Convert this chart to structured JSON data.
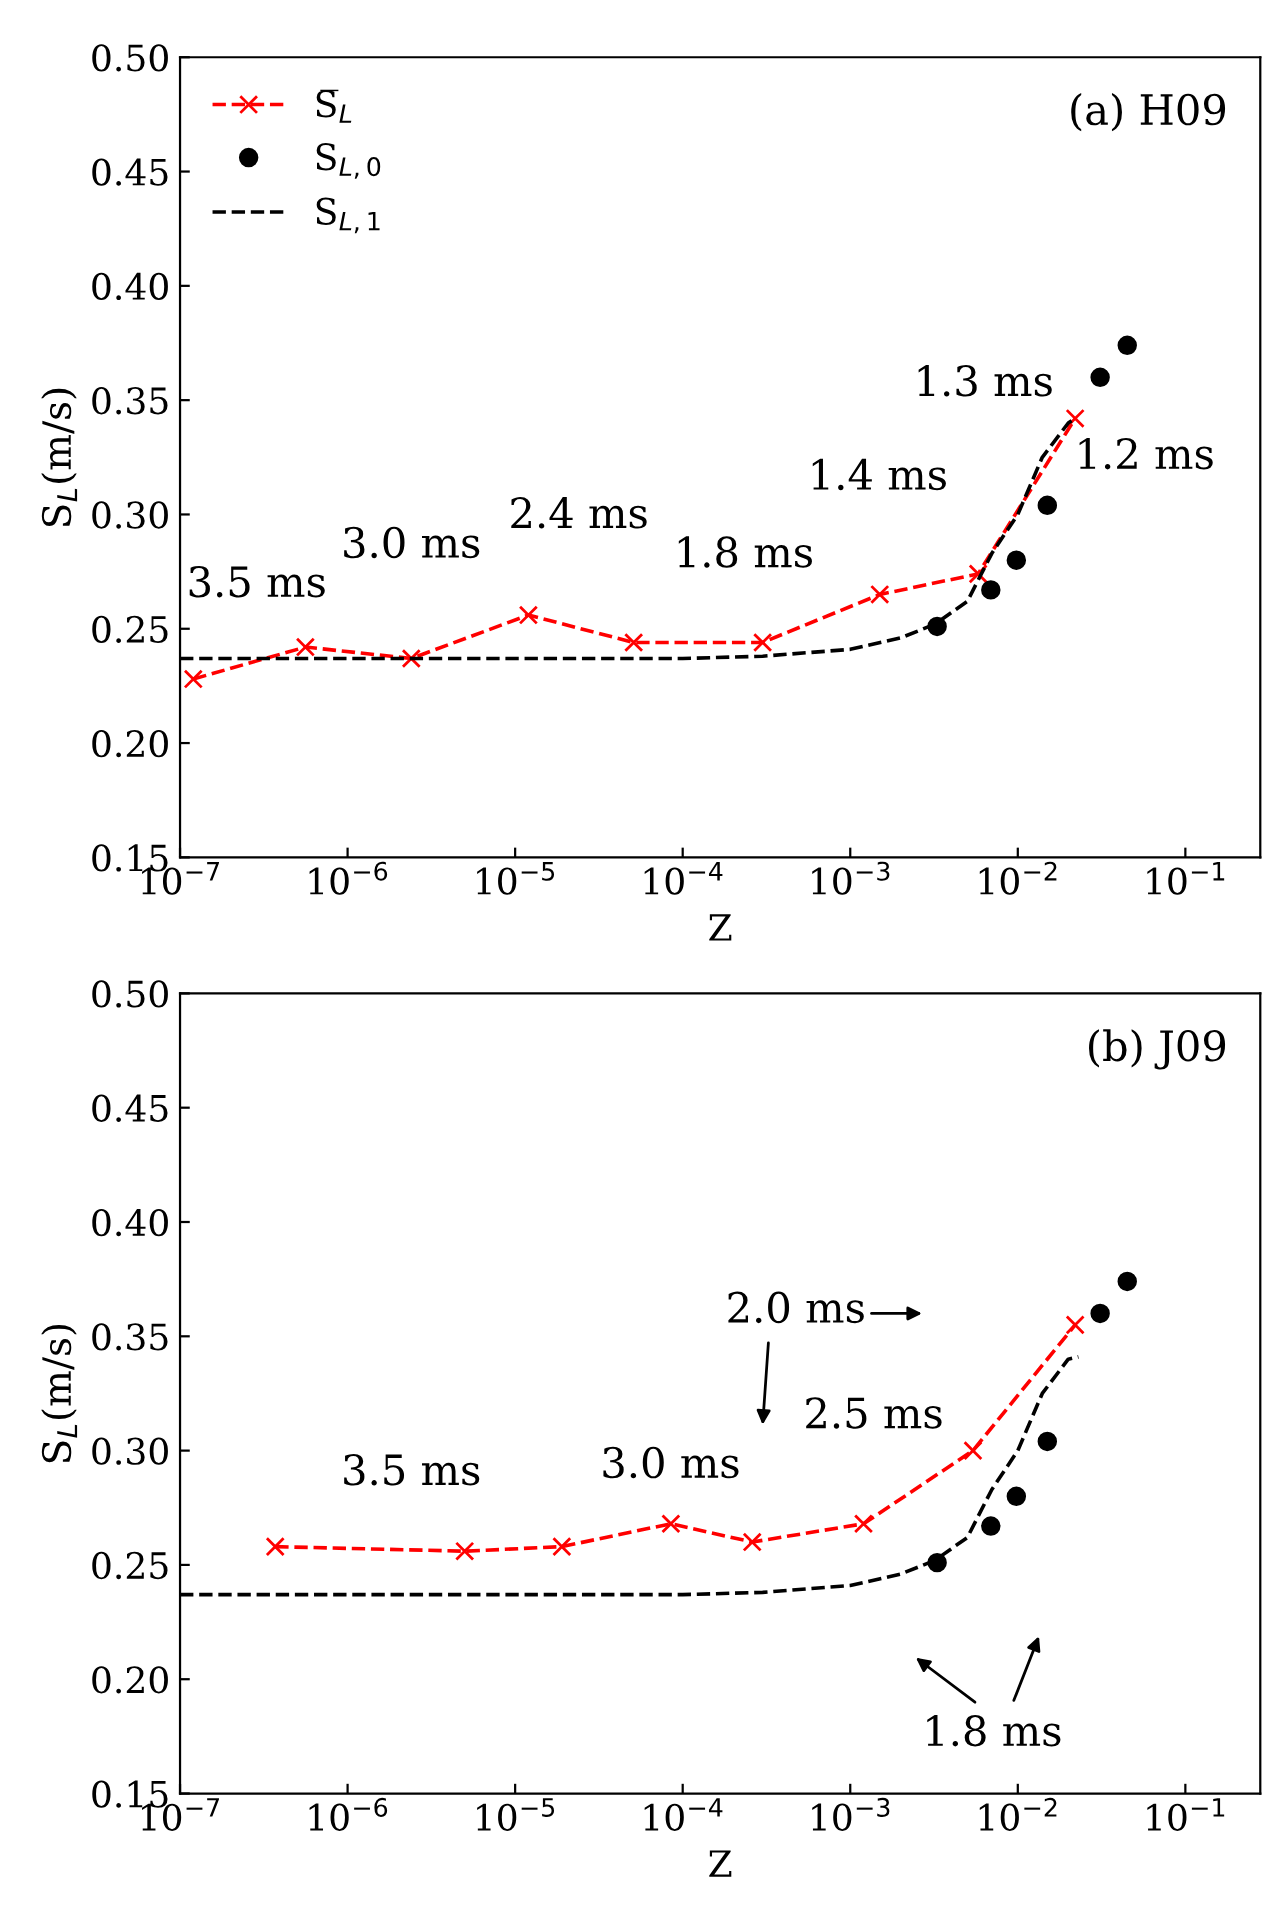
{
  "chart_data": [
    {
      "type": "line",
      "xlabel": "Z",
      "ylabel": "S$_{L}$(m/s)",
      "log": "x",
      "xlim": [
        1e-07,
        0.28
      ],
      "ylim": [
        0.15,
        0.5
      ],
      "xticks": [
        {
          "value": 1e-07,
          "label": "10$^{−7}$"
        },
        {
          "value": 1e-06,
          "label": "10$^{−6}$"
        },
        {
          "value": 1e-05,
          "label": "10$^{−5}$"
        },
        {
          "value": 0.0001,
          "label": "10$^{−4}$"
        },
        {
          "value": 0.001,
          "label": "10$^{−3}$"
        },
        {
          "value": 0.01,
          "label": "10$^{−2}$"
        },
        {
          "value": 0.1,
          "label": "10$^{−1}$"
        }
      ],
      "yticks": [
        {
          "value": 0.15,
          "label": "0.15"
        },
        {
          "value": 0.2,
          "label": "0.20"
        },
        {
          "value": 0.25,
          "label": "0.25"
        },
        {
          "value": 0.3,
          "label": "0.30"
        },
        {
          "value": 0.35,
          "label": "0.35"
        },
        {
          "value": 0.4,
          "label": "0.40"
        },
        {
          "value": 0.45,
          "label": "0.45"
        },
        {
          "value": 0.5,
          "label": "0.50"
        }
      ],
      "grid": false,
      "legend": "top left",
      "series": [
        {
          "name": "S̅$_{L}$",
          "color": "#ff0000",
          "marker": "cross",
          "line_style": "dashed",
          "x": [
            1.2e-07,
            5.6e-07,
            2.4e-06,
            1.2e-05,
            5.1e-05,
            0.0003,
            0.0015,
            0.0058,
            0.022
          ],
          "values": [
            0.228,
            0.242,
            0.237,
            0.256,
            0.244,
            0.244,
            0.265,
            0.274,
            0.342
          ]
        },
        {
          "name": "S$_{L,0}$",
          "type": "scatter",
          "color": "#000000",
          "marker": "circle",
          "x": [
            0.0033,
            0.0069,
            0.0098,
            0.015,
            0.031,
            0.045
          ],
          "values": [
            0.251,
            0.267,
            0.28,
            0.304,
            0.36,
            0.374
          ]
        },
        {
          "name": "S$_{L,1}$",
          "color": "#000000",
          "marker": "none",
          "line_style": "dashed",
          "x": [
            1e-07,
            0.0001,
            0.0003,
            0.001,
            0.002,
            0.0032,
            0.005,
            0.007,
            0.01,
            0.014,
            0.02,
            0.022
          ],
          "values": [
            0.237,
            0.237,
            0.238,
            0.241,
            0.246,
            0.252,
            0.262,
            0.283,
            0.3,
            0.325,
            0.34,
            0.342
          ]
        }
      ],
      "annotations": [
        "(a) H09",
        "3.5 ms",
        "3.0 ms",
        "2.4 ms",
        "1.8 ms",
        "1.4 ms",
        "1.3 ms",
        "1.2 ms"
      ]
    },
    {
      "type": "line",
      "xlabel": "Z",
      "ylabel": "S$_{L}$(m/s)",
      "log": "x",
      "xlim": [
        1e-07,
        0.28
      ],
      "ylim": [
        0.15,
        0.5
      ],
      "xticks": [
        {
          "value": 1e-07,
          "label": "10$^{−7}$"
        },
        {
          "value": 1e-06,
          "label": "10$^{−6}$"
        },
        {
          "value": 1e-05,
          "label": "10$^{−5}$"
        },
        {
          "value": 0.0001,
          "label": "10$^{−4}$"
        },
        {
          "value": 0.001,
          "label": "10$^{−3}$"
        },
        {
          "value": 0.01,
          "label": "10$^{−2}$"
        },
        {
          "value": 0.1,
          "label": "10$^{−1}$"
        }
      ],
      "yticks": [
        {
          "value": 0.15,
          "label": "0.15"
        },
        {
          "value": 0.2,
          "label": "0.20"
        },
        {
          "value": 0.25,
          "label": "0.25"
        },
        {
          "value": 0.3,
          "label": "0.30"
        },
        {
          "value": 0.35,
          "label": "0.35"
        },
        {
          "value": 0.4,
          "label": "0.40"
        },
        {
          "value": 0.45,
          "label": "0.45"
        },
        {
          "value": 0.5,
          "label": "0.50"
        }
      ],
      "grid": false,
      "legend": false,
      "series": [
        {
          "color": "#ff0000",
          "marker": "cross",
          "line_style": "dashed",
          "x": [
            3.7e-07,
            5e-06,
            1.9e-05,
            8.5e-05,
            0.00026,
            0.0012,
            0.0054,
            0.022
          ],
          "values": [
            0.258,
            0.256,
            0.258,
            0.268,
            0.26,
            0.268,
            0.3,
            0.355
          ]
        },
        {
          "type": "scatter",
          "color": "#000000",
          "marker": "circle",
          "x": [
            0.0033,
            0.0069,
            0.0098,
            0.015,
            0.031,
            0.045
          ],
          "values": [
            0.251,
            0.267,
            0.28,
            0.304,
            0.36,
            0.374
          ]
        },
        {
          "color": "#000000",
          "marker": "none",
          "line_style": "dashed",
          "x": [
            1e-07,
            0.0001,
            0.0003,
            0.001,
            0.002,
            0.0032,
            0.005,
            0.007,
            0.01,
            0.014,
            0.02,
            0.023
          ],
          "values": [
            0.237,
            0.237,
            0.238,
            0.241,
            0.246,
            0.252,
            0.262,
            0.283,
            0.3,
            0.325,
            0.34,
            0.341
          ]
        }
      ],
      "annotations": [
        "(b) J09",
        "3.5 ms",
        "3.0 ms",
        "2.0 ms",
        "2.5 ms",
        "1.8 ms"
      ]
    }
  ]
}
